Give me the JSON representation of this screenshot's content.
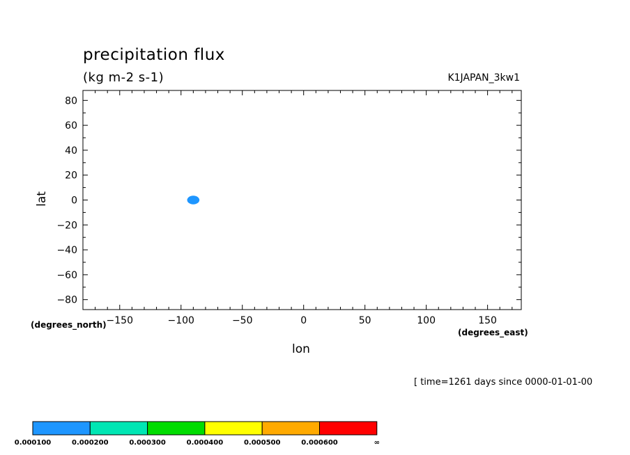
{
  "chart_data": {
    "type": "heatmap",
    "title": "precipitation flux",
    "subtitle": "(kg m-2 s-1)",
    "dataset": "K1JAPAN_3kw1",
    "xlabel": "lon",
    "ylabel": "lat",
    "xunits": "(degrees_east)",
    "yunits": "(degrees_north)",
    "time_label": "[ time=1261 days since 0000-01-01-00",
    "xlim": [
      -180,
      177.5
    ],
    "ylim": [
      -88,
      88
    ],
    "xticks": [
      -150,
      -100,
      -50,
      0,
      50,
      100,
      150
    ],
    "xtick_labels": [
      "−150",
      "−100",
      "−50",
      "0",
      "50",
      "100",
      "150"
    ],
    "yticks": [
      80,
      60,
      40,
      20,
      0,
      -20,
      -40,
      -60,
      -80
    ],
    "ytick_labels": [
      "80",
      "60",
      "40",
      "20",
      "0",
      "−20",
      "−40",
      "−60",
      "−80"
    ],
    "grid": false,
    "colorbar": {
      "colors": [
        "#1e96ff",
        "#00e6b4",
        "#00dc00",
        "#ffff00",
        "#ffaa00",
        "#ff0000"
      ],
      "boundaries": [
        "0.000100",
        "0.000200",
        "0.000300",
        "0.000400",
        "0.000500",
        "0.000600",
        "∞"
      ]
    },
    "regions": [
      {
        "lon": -90,
        "lat": 0,
        "rx": 5,
        "ry": 3.5,
        "level": 0
      }
    ]
  }
}
